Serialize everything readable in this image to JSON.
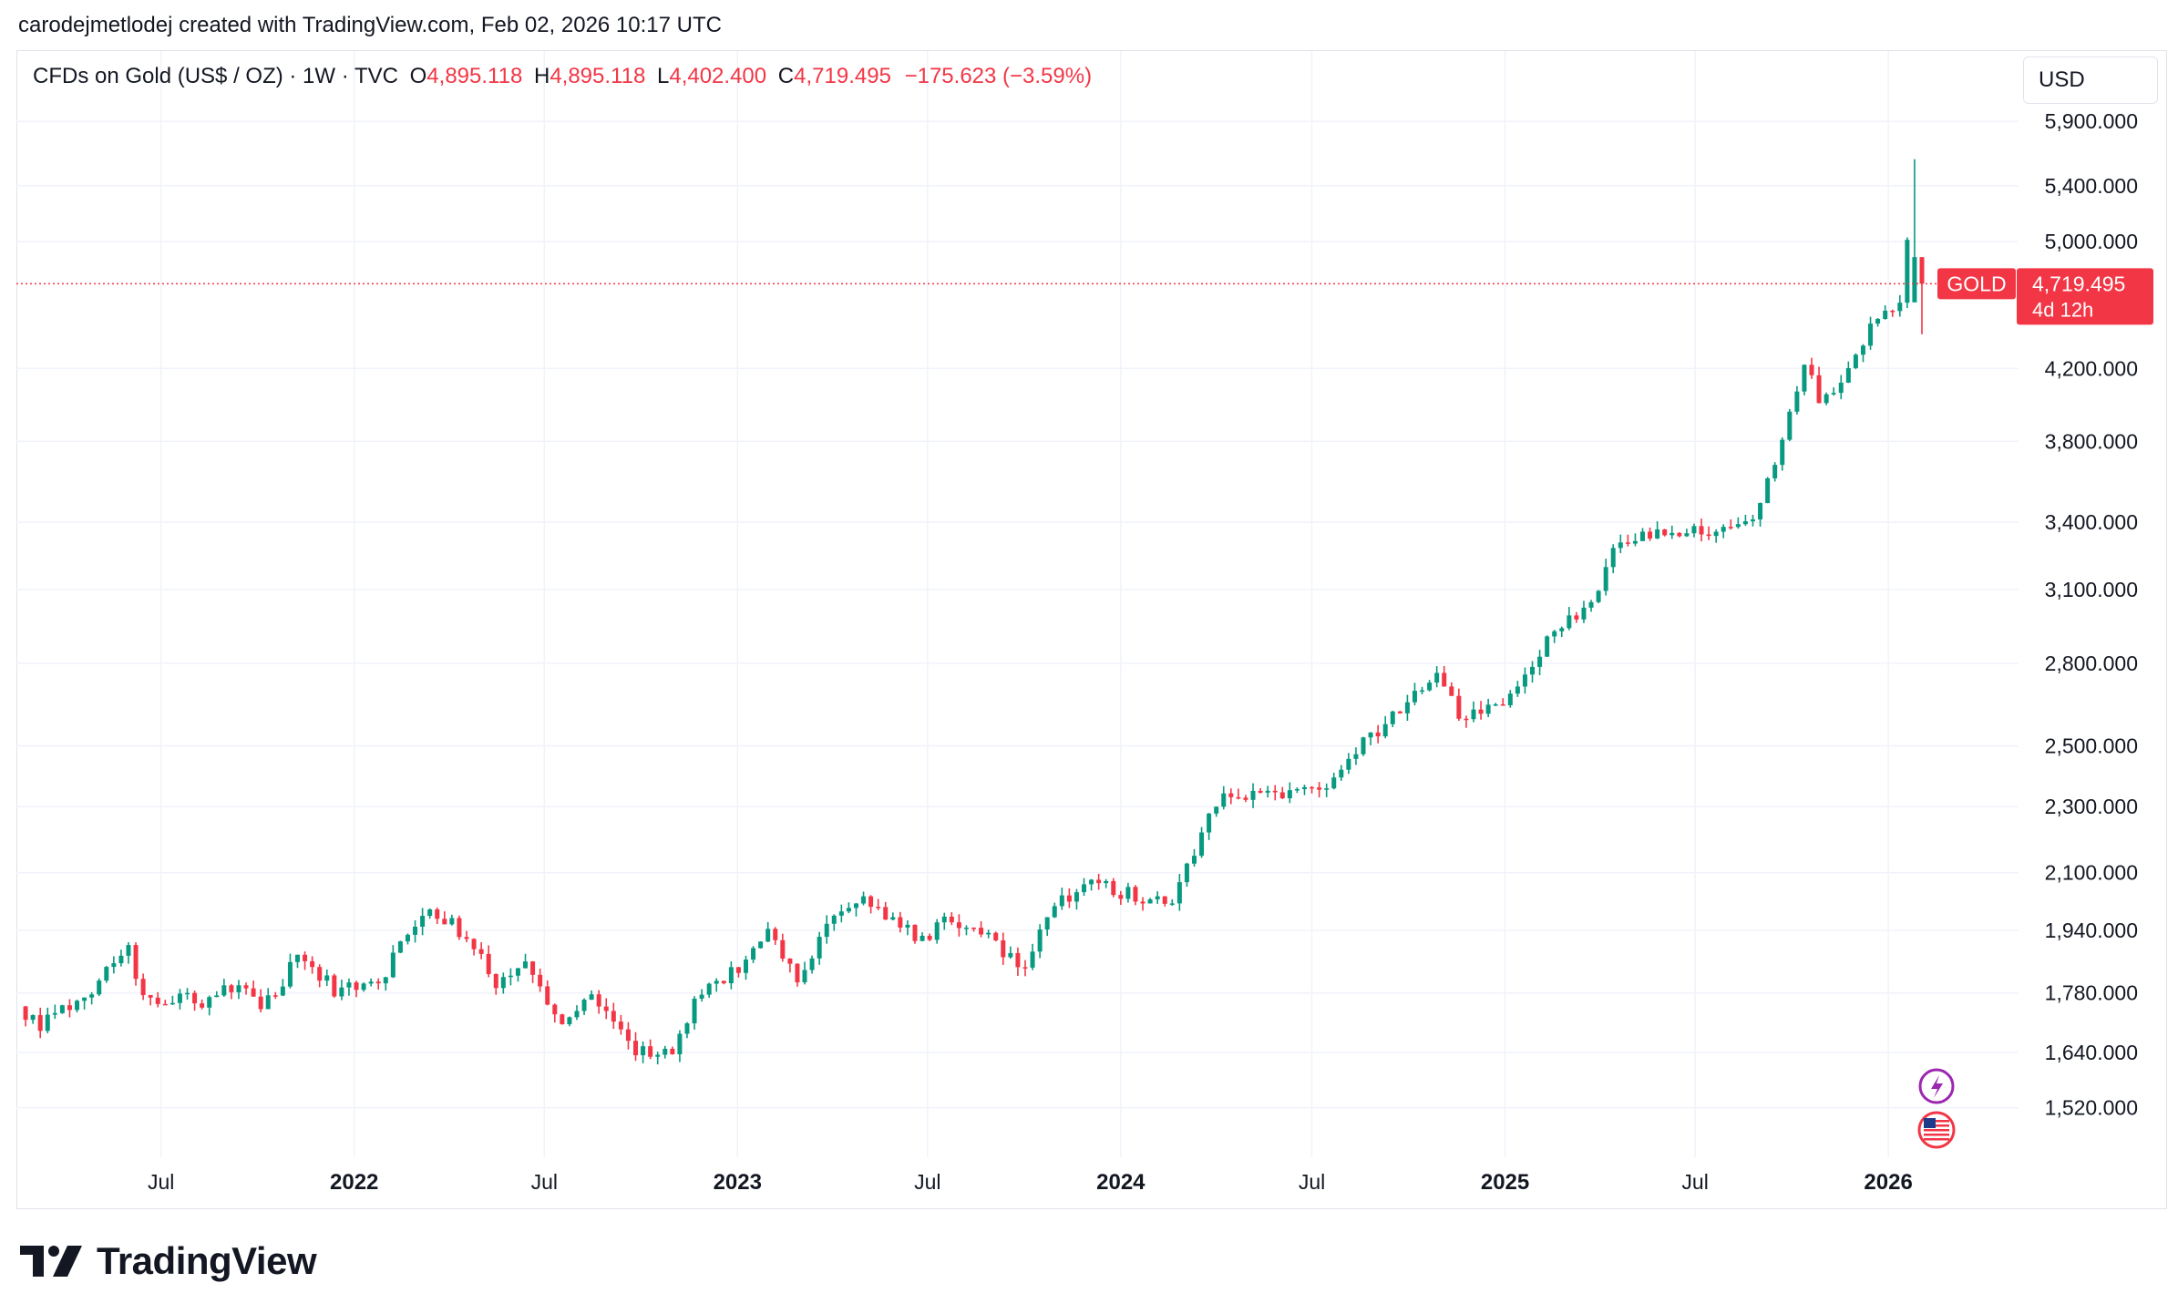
{
  "caption": "carodejmetlodej created with TradingView.com, Feb 02, 2026 10:17 UTC",
  "legend": {
    "symbol": "CFDs on Gold (US$ / OZ) · 1W · TVC",
    "o_label": "O",
    "o_value": "4,895.118",
    "h_label": "H",
    "h_value": "4,895.118",
    "l_label": "L",
    "l_value": "4,402.400",
    "c_label": "C",
    "c_value": "4,719.495",
    "change": "−175.623 (−3.59%)"
  },
  "currency": "USD",
  "price_tag": {
    "symbol": "GOLD",
    "price": "4,719.495",
    "countdown": "4d 12h"
  },
  "brand": {
    "name": "TradingView"
  },
  "colors": {
    "up": "#089981",
    "down": "#f23645",
    "grid": "#f0f3fa",
    "text": "#131722"
  },
  "event_icons": [
    "lightning-icon",
    "us-flag-icon"
  ],
  "chart_data": {
    "type": "candlestick",
    "interval": "1W",
    "y_scale": "log",
    "ylim": [
      1420,
      6150
    ],
    "yticks": [
      5900,
      5400,
      5000,
      4200,
      3800,
      3400,
      3100,
      2800,
      2500,
      2300,
      2100,
      1940,
      1780,
      1640,
      1520
    ],
    "ytick_labels": [
      "5,900.000",
      "5,400.000",
      "5,000.000",
      "4,200.000",
      "3,800.000",
      "3,400.000",
      "3,100.000",
      "2,800.000",
      "2,500.000",
      "2,300.000",
      "2,100.000",
      "1,940.000",
      "1,780.000",
      "1,640.000",
      "1,520.000"
    ],
    "xlim": [
      "2021-02-15",
      "2026-05-05"
    ],
    "xticks": [
      {
        "date": "2021-07-01",
        "label": "Jul",
        "year": false
      },
      {
        "date": "2022-01-01",
        "label": "2022",
        "year": true
      },
      {
        "date": "2022-07-01",
        "label": "Jul",
        "year": false
      },
      {
        "date": "2023-01-01",
        "label": "2023",
        "year": true
      },
      {
        "date": "2023-07-01",
        "label": "Jul",
        "year": false
      },
      {
        "date": "2024-01-01",
        "label": "2024",
        "year": true
      },
      {
        "date": "2024-07-01",
        "label": "Jul",
        "year": false
      },
      {
        "date": "2025-01-01",
        "label": "2025",
        "year": true
      },
      {
        "date": "2025-07-01",
        "label": "Jul",
        "year": false
      },
      {
        "date": "2026-01-01",
        "label": "2026",
        "year": true
      }
    ],
    "current_price": 4719.495,
    "series_anchors": [
      {
        "date": "2021-02-22",
        "close": 1730
      },
      {
        "date": "2021-03-08",
        "close": 1700
      },
      {
        "date": "2021-04-19",
        "close": 1775
      },
      {
        "date": "2021-05-31",
        "close": 1900
      },
      {
        "date": "2021-06-14",
        "close": 1765
      },
      {
        "date": "2021-08-09",
        "close": 1760
      },
      {
        "date": "2021-09-06",
        "close": 1800
      },
      {
        "date": "2021-10-04",
        "close": 1750
      },
      {
        "date": "2021-11-08",
        "close": 1860
      },
      {
        "date": "2021-12-13",
        "close": 1790
      },
      {
        "date": "2022-01-24",
        "close": 1800
      },
      {
        "date": "2022-02-28",
        "close": 1970
      },
      {
        "date": "2022-03-07",
        "close": 2000
      },
      {
        "date": "2022-04-18",
        "close": 1930
      },
      {
        "date": "2022-05-16",
        "close": 1810
      },
      {
        "date": "2022-06-13",
        "close": 1840
      },
      {
        "date": "2022-07-18",
        "close": 1700
      },
      {
        "date": "2022-08-15",
        "close": 1790
      },
      {
        "date": "2022-09-26",
        "close": 1650
      },
      {
        "date": "2022-10-31",
        "close": 1640
      },
      {
        "date": "2022-11-21",
        "close": 1760
      },
      {
        "date": "2023-01-02",
        "close": 1840
      },
      {
        "date": "2023-01-30",
        "close": 1930
      },
      {
        "date": "2023-02-27",
        "close": 1815
      },
      {
        "date": "2023-04-10",
        "close": 2000
      },
      {
        "date": "2023-05-01",
        "close": 2020
      },
      {
        "date": "2023-06-26",
        "close": 1920
      },
      {
        "date": "2023-07-17",
        "close": 1960
      },
      {
        "date": "2023-08-28",
        "close": 1915
      },
      {
        "date": "2023-10-02",
        "close": 1830
      },
      {
        "date": "2023-10-23",
        "close": 1985
      },
      {
        "date": "2023-11-27",
        "close": 2075
      },
      {
        "date": "2024-01-15",
        "close": 2035
      },
      {
        "date": "2024-02-19",
        "close": 2030
      },
      {
        "date": "2024-03-11",
        "close": 2170
      },
      {
        "date": "2024-04-08",
        "close": 2360
      },
      {
        "date": "2024-05-20",
        "close": 2330
      },
      {
        "date": "2024-06-10",
        "close": 2330
      },
      {
        "date": "2024-07-22",
        "close": 2390
      },
      {
        "date": "2024-09-16",
        "close": 2620
      },
      {
        "date": "2024-10-28",
        "close": 2750
      },
      {
        "date": "2024-11-18",
        "close": 2600
      },
      {
        "date": "2024-12-30",
        "close": 2640
      },
      {
        "date": "2025-02-10",
        "close": 2900
      },
      {
        "date": "2025-03-24",
        "close": 3060
      },
      {
        "date": "2025-04-21",
        "close": 3330
      },
      {
        "date": "2025-06-09",
        "close": 3360
      },
      {
        "date": "2025-07-21",
        "close": 3330
      },
      {
        "date": "2025-08-25",
        "close": 3410
      },
      {
        "date": "2025-09-22",
        "close": 3780
      },
      {
        "date": "2025-10-13",
        "close": 4250
      },
      {
        "date": "2025-10-27",
        "close": 4000
      },
      {
        "date": "2025-11-24",
        "close": 4200
      },
      {
        "date": "2025-12-22",
        "close": 4520
      },
      {
        "date": "2026-01-12",
        "close": 4600
      },
      {
        "date": "2026-01-19",
        "close": 4980
      },
      {
        "date": "2026-01-26",
        "close": 4895.118
      },
      {
        "date": "2026-02-02",
        "close": 4719.495
      }
    ],
    "last_candles": [
      {
        "date": "2026-01-26",
        "open": 4600,
        "high": 5600,
        "low": 4650,
        "close": 4895.118
      },
      {
        "date": "2026-02-02",
        "open": 4895.118,
        "high": 4895.118,
        "low": 4402.4,
        "close": 4719.495
      }
    ]
  }
}
